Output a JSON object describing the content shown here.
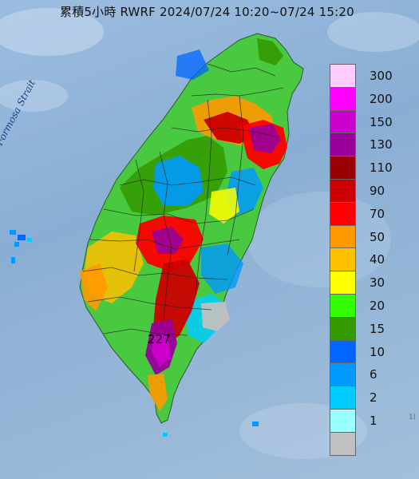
{
  "title": "累積5小時 RWRF 2024/07/24 10:20~07/24 15:20",
  "sea_label": "Formosa Strait",
  "peak_label": "227",
  "edge_label": "1(",
  "legend": {
    "items": [
      {
        "label": "300",
        "color": "#ffccff"
      },
      {
        "label": "200",
        "color": "#ff00ff"
      },
      {
        "label": "150",
        "color": "#cc00cc"
      },
      {
        "label": "130",
        "color": "#990099"
      },
      {
        "label": "110",
        "color": "#990000"
      },
      {
        "label": "90",
        "color": "#cc0000"
      },
      {
        "label": "70",
        "color": "#ff0000"
      },
      {
        "label": "50",
        "color": "#ff9900"
      },
      {
        "label": "40",
        "color": "#ffc000"
      },
      {
        "label": "30",
        "color": "#ffff00"
      },
      {
        "label": "20",
        "color": "#33ff00"
      },
      {
        "label": "15",
        "color": "#339900"
      },
      {
        "label": "10",
        "color": "#0066ff"
      },
      {
        "label": "6",
        "color": "#0099ff"
      },
      {
        "label": "2",
        "color": "#00ccff"
      },
      {
        "label": "1",
        "color": "#99ffff"
      },
      {
        "label": "",
        "color": "#c0c0c0"
      }
    ]
  }
}
